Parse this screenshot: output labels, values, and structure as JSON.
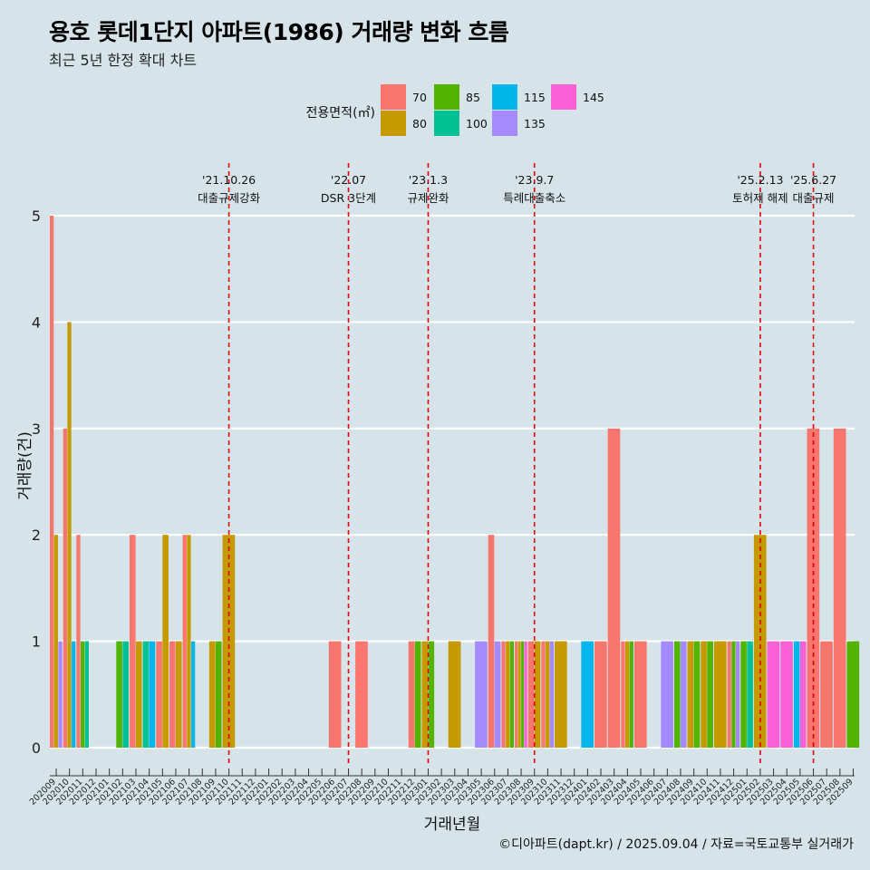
{
  "title": "용호 롯데1단지 아파트(1986) 거래량 변화 흐름",
  "subtitle": "최근 5년 한정 확대 차트",
  "caption": "©디아파트(dapt.kr) / 2025.09.04 / 자료=국토교통부 실거래가",
  "colors": {
    "background": "#d6e4ea",
    "grid": "#ffffff",
    "event_line": "#e8000b",
    "70": "#f8766d",
    "80": "#c49a00",
    "85": "#53b400",
    "100": "#00c094",
    "115": "#00b6eb",
    "135": "#a58aff",
    "145": "#fb61d7"
  },
  "chart_data": {
    "type": "bar",
    "stacked": false,
    "xlabel": "거래년월",
    "ylabel": "거래량(건)",
    "ylim": [
      0,
      5
    ],
    "yticks": [
      0,
      1,
      2,
      3,
      4,
      5
    ],
    "grid": true,
    "legend": {
      "title": "전용면적(㎡)",
      "position": "top",
      "entries": [
        "70",
        "80",
        "85",
        "100",
        "115",
        "135",
        "145"
      ]
    },
    "categories": [
      "202009",
      "202010",
      "202011",
      "202012",
      "202101",
      "202102",
      "202103",
      "202104",
      "202105",
      "202106",
      "202107",
      "202108",
      "202109",
      "202110",
      "202111",
      "202112",
      "202201",
      "202202",
      "202203",
      "202204",
      "202205",
      "202206",
      "202207",
      "202208",
      "202209",
      "202210",
      "202211",
      "202212",
      "202301",
      "202302",
      "202303",
      "202304",
      "202305",
      "202306",
      "202307",
      "202308",
      "202309",
      "202310",
      "202311",
      "202312",
      "202401",
      "202402",
      "202403",
      "202404",
      "202405",
      "202406",
      "202407",
      "202408",
      "202409",
      "202410",
      "202411",
      "202412",
      "202501",
      "202502",
      "202503",
      "202504",
      "202505",
      "202506",
      "202507",
      "202508",
      "202509"
    ],
    "series": [
      {
        "name": "70",
        "values": [
          5,
          3,
          2,
          0,
          0,
          0,
          2,
          0,
          1,
          1,
          2,
          0,
          0,
          0,
          0,
          0,
          0,
          0,
          0,
          0,
          0,
          1,
          0,
          1,
          0,
          0,
          0,
          1,
          0,
          0,
          0,
          0,
          0,
          2,
          1,
          1,
          1,
          1,
          0,
          0,
          0,
          1,
          3,
          1,
          1,
          0,
          0,
          0,
          0,
          0,
          0,
          1,
          0,
          0,
          0,
          0,
          0,
          3,
          1,
          3,
          0
        ]
      },
      {
        "name": "80",
        "values": [
          2,
          4,
          0,
          0,
          0,
          0,
          1,
          0,
          2,
          1,
          2,
          0,
          1,
          2,
          0,
          0,
          0,
          0,
          0,
          0,
          0,
          0,
          0,
          0,
          0,
          0,
          0,
          0,
          1,
          0,
          1,
          0,
          0,
          0,
          1,
          1,
          1,
          1,
          1,
          0,
          0,
          0,
          0,
          1,
          0,
          0,
          0,
          0,
          1,
          1,
          1,
          0,
          0,
          2,
          0,
          0,
          0,
          0,
          0,
          0,
          0
        ]
      },
      {
        "name": "85",
        "values": [
          0,
          0,
          1,
          0,
          0,
          1,
          0,
          0,
          0,
          0,
          0,
          0,
          1,
          0,
          0,
          0,
          0,
          0,
          0,
          0,
          0,
          0,
          0,
          0,
          0,
          0,
          0,
          1,
          1,
          0,
          0,
          0,
          0,
          0,
          1,
          1,
          0,
          0,
          0,
          0,
          0,
          0,
          0,
          1,
          0,
          0,
          0,
          1,
          1,
          1,
          0,
          1,
          1,
          0,
          0,
          0,
          0,
          0,
          0,
          0,
          1
        ]
      },
      {
        "name": "100",
        "values": [
          0,
          0,
          1,
          0,
          0,
          1,
          0,
          1,
          0,
          0,
          0,
          0,
          0,
          0,
          0,
          0,
          0,
          0,
          0,
          0,
          0,
          0,
          0,
          0,
          0,
          0,
          0,
          0,
          0,
          0,
          0,
          0,
          0,
          0,
          0,
          0,
          0,
          0,
          0,
          0,
          0,
          0,
          0,
          0,
          0,
          0,
          0,
          0,
          0,
          0,
          0,
          0,
          1,
          0,
          0,
          0,
          0,
          0,
          0,
          0,
          0
        ]
      },
      {
        "name": "115",
        "values": [
          0,
          1,
          0,
          0,
          0,
          0,
          0,
          1,
          0,
          0,
          1,
          0,
          0,
          0,
          0,
          0,
          0,
          0,
          0,
          0,
          0,
          0,
          0,
          0,
          0,
          0,
          0,
          0,
          0,
          0,
          0,
          0,
          0,
          0,
          0,
          0,
          0,
          0,
          0,
          0,
          1,
          0,
          0,
          0,
          0,
          0,
          0,
          0,
          0,
          0,
          0,
          0,
          0,
          0,
          0,
          0,
          1,
          0,
          0,
          0,
          0
        ]
      },
      {
        "name": "135",
        "values": [
          1,
          0,
          0,
          0,
          0,
          0,
          0,
          0,
          0,
          0,
          0,
          0,
          0,
          0,
          0,
          0,
          0,
          0,
          0,
          0,
          0,
          0,
          0,
          0,
          0,
          0,
          0,
          0,
          0,
          0,
          0,
          0,
          1,
          1,
          0,
          0,
          0,
          1,
          0,
          0,
          0,
          0,
          0,
          0,
          0,
          0,
          1,
          1,
          0,
          0,
          0,
          1,
          0,
          0,
          0,
          0,
          0,
          0,
          0,
          0,
          0
        ]
      },
      {
        "name": "145",
        "values": [
          0,
          0,
          0,
          0,
          0,
          0,
          0,
          0,
          0,
          0,
          0,
          0,
          0,
          0,
          0,
          0,
          0,
          0,
          0,
          0,
          0,
          0,
          0,
          0,
          0,
          0,
          0,
          0,
          0,
          0,
          0,
          0,
          0,
          0,
          0,
          1,
          0,
          0,
          0,
          0,
          0,
          0,
          0,
          0,
          0,
          0,
          0,
          0,
          0,
          0,
          0,
          0,
          0,
          0,
          1,
          1,
          1,
          0,
          0,
          0,
          0
        ]
      }
    ],
    "events": [
      {
        "date": "'21.10.26",
        "label": "대출규제강화",
        "x": "202110"
      },
      {
        "date": "'22.07",
        "label": "DSR 3단계",
        "x": "202207"
      },
      {
        "date": "'23.1.3",
        "label": "규제완화",
        "x": "202301"
      },
      {
        "date": "'23.9.7",
        "label": "특례대출축소",
        "x": "202309"
      },
      {
        "date": "'25.2.13",
        "label": "토허제 해제",
        "x": "202502"
      },
      {
        "date": "'25.6.27",
        "label": "대출규제",
        "x": "202506"
      }
    ]
  }
}
